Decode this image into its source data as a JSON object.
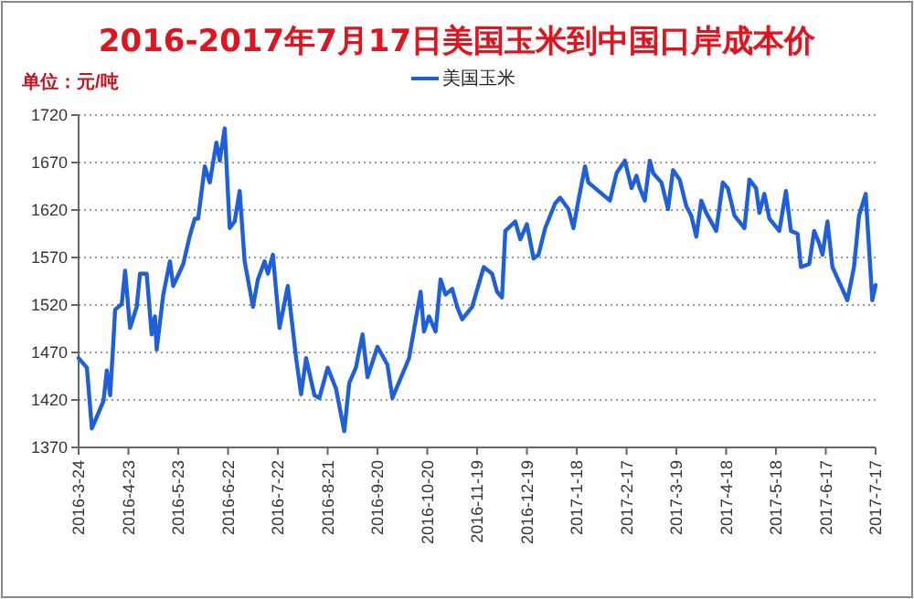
{
  "chart_data": {
    "type": "line",
    "title": "2016-2017年7月17日美国玉米到中国口岸成本价",
    "ylabel": "单位：元/吨",
    "x": [
      "2016-03-24",
      "2016-03-29",
      "2016-04-01",
      "2016-04-08",
      "2016-04-10",
      "2016-04-12",
      "2016-04-14",
      "2016-04-15",
      "2016-04-19",
      "2016-04-21",
      "2016-04-24",
      "2016-04-28",
      "2016-04-30",
      "2016-05-04",
      "2016-05-07",
      "2016-05-09",
      "2016-05-10",
      "2016-05-14",
      "2016-05-18",
      "2016-05-20",
      "2016-05-26",
      "2016-05-30",
      "2016-06-02",
      "2016-06-04",
      "2016-06-08",
      "2016-06-11",
      "2016-06-15",
      "2016-06-17",
      "2016-06-20",
      "2016-06-23",
      "2016-06-26",
      "2016-06-29",
      "2016-07-02",
      "2016-07-07",
      "2016-07-10",
      "2016-07-14",
      "2016-07-16",
      "2016-07-19",
      "2016-07-23",
      "2016-07-28",
      "2016-08-02",
      "2016-08-05",
      "2016-08-08",
      "2016-08-13",
      "2016-08-16",
      "2016-08-21",
      "2016-08-26",
      "2016-08-31",
      "2016-09-03",
      "2016-09-07",
      "2016-09-11",
      "2016-09-14",
      "2016-09-20",
      "2016-09-26",
      "2016-09-29",
      "2016-10-09",
      "2016-10-16",
      "2016-10-18",
      "2016-10-21",
      "2016-10-25",
      "2016-10-28",
      "2016-10-31",
      "2016-11-04",
      "2016-11-07",
      "2016-11-10",
      "2016-11-16",
      "2016-11-23",
      "2016-11-28",
      "2016-12-01",
      "2016-12-04",
      "2016-12-06",
      "2016-12-12",
      "2016-12-15",
      "2016-12-19",
      "2016-12-23",
      "2016-12-26",
      "2016-12-30",
      "2017-01-05",
      "2017-01-08",
      "2017-01-13",
      "2017-01-16",
      "2017-01-19",
      "2017-01-23",
      "2017-01-25",
      "2017-02-07",
      "2017-02-11",
      "2017-02-16",
      "2017-02-20",
      "2017-02-23",
      "2017-02-25",
      "2017-02-28",
      "2017-03-03",
      "2017-03-05",
      "2017-03-10",
      "2017-03-14",
      "2017-03-17",
      "2017-03-21",
      "2017-03-25",
      "2017-03-28",
      "2017-03-31",
      "2017-04-03",
      "2017-04-06",
      "2017-04-12",
      "2017-04-16",
      "2017-04-19",
      "2017-04-23",
      "2017-04-29",
      "2017-05-02",
      "2017-05-06",
      "2017-05-08",
      "2017-05-11",
      "2017-05-14",
      "2017-05-20",
      "2017-05-24",
      "2017-05-27",
      "2017-05-31",
      "2017-06-02",
      "2017-06-07",
      "2017-06-10",
      "2017-06-13",
      "2017-06-15",
      "2017-06-18",
      "2017-06-21",
      "2017-06-30",
      "2017-07-04",
      "2017-07-07",
      "2017-07-11",
      "2017-07-15",
      "2017-07-17"
    ],
    "series": [
      {
        "name": "美国玉米",
        "color": "#1f5fd9",
        "values": [
          1464,
          1454,
          1390,
          1419,
          1451,
          1425,
          1483,
          1515,
          1521,
          1556,
          1496,
          1518,
          1553,
          1553,
          1489,
          1508,
          1473,
          1531,
          1566,
          1540,
          1563,
          1593,
          1611,
          1611,
          1666,
          1649,
          1691,
          1672,
          1706,
          1601,
          1608,
          1640,
          1566,
          1518,
          1547,
          1566,
          1553,
          1573,
          1496,
          1540,
          1464,
          1426,
          1464,
          1425,
          1422,
          1454,
          1432,
          1387,
          1438,
          1454,
          1489,
          1444,
          1476,
          1457,
          1422,
          1464,
          1534,
          1492,
          1508,
          1492,
          1547,
          1531,
          1537,
          1518,
          1505,
          1518,
          1560,
          1553,
          1534,
          1528,
          1598,
          1608,
          1589,
          1605,
          1569,
          1573,
          1601,
          1627,
          1633,
          1621,
          1601,
          1630,
          1666,
          1649,
          1630,
          1659,
          1672,
          1643,
          1656,
          1643,
          1630,
          1672,
          1659,
          1649,
          1621,
          1662,
          1652,
          1624,
          1614,
          1592,
          1630,
          1617,
          1598,
          1649,
          1643,
          1614,
          1601,
          1652,
          1643,
          1617,
          1637,
          1611,
          1598,
          1640,
          1598,
          1595,
          1560,
          1563,
          1598,
          1585,
          1573,
          1608,
          1560,
          1525,
          1560,
          1614,
          1637,
          1525,
          1541
        ]
      }
    ],
    "xlim": [
      "2016-03-24",
      "2017-07-17"
    ],
    "xticks": [
      {
        "value": "2016-03-24",
        "label": "2016-3-24"
      },
      {
        "value": "2016-04-23",
        "label": "2016-4-23"
      },
      {
        "value": "2016-05-23",
        "label": "2016-5-23"
      },
      {
        "value": "2016-06-22",
        "label": "2016-6-22"
      },
      {
        "value": "2016-07-22",
        "label": "2016-7-22"
      },
      {
        "value": "2016-08-21",
        "label": "2016-8-21"
      },
      {
        "value": "2016-09-20",
        "label": "2016-9-20"
      },
      {
        "value": "2016-10-20",
        "label": "2016-10-20"
      },
      {
        "value": "2016-11-19",
        "label": "2016-11-19"
      },
      {
        "value": "2016-12-19",
        "label": "2016-12-19"
      },
      {
        "value": "2017-01-18",
        "label": "2017-1-18"
      },
      {
        "value": "2017-02-17",
        "label": "2017-2-17"
      },
      {
        "value": "2017-03-19",
        "label": "2017-3-19"
      },
      {
        "value": "2017-04-18",
        "label": "2017-4-18"
      },
      {
        "value": "2017-05-18",
        "label": "2017-5-18"
      },
      {
        "value": "2017-06-17",
        "label": "2017-6-17"
      },
      {
        "value": "2017-07-17",
        "label": "2017-7-17"
      }
    ],
    "ylim": [
      1370,
      1720
    ],
    "yticks": [
      1370,
      1420,
      1470,
      1520,
      1570,
      1620,
      1670,
      1720
    ],
    "grid": "y",
    "legend": "top",
    "marker": "none",
    "line_style": "solid"
  }
}
